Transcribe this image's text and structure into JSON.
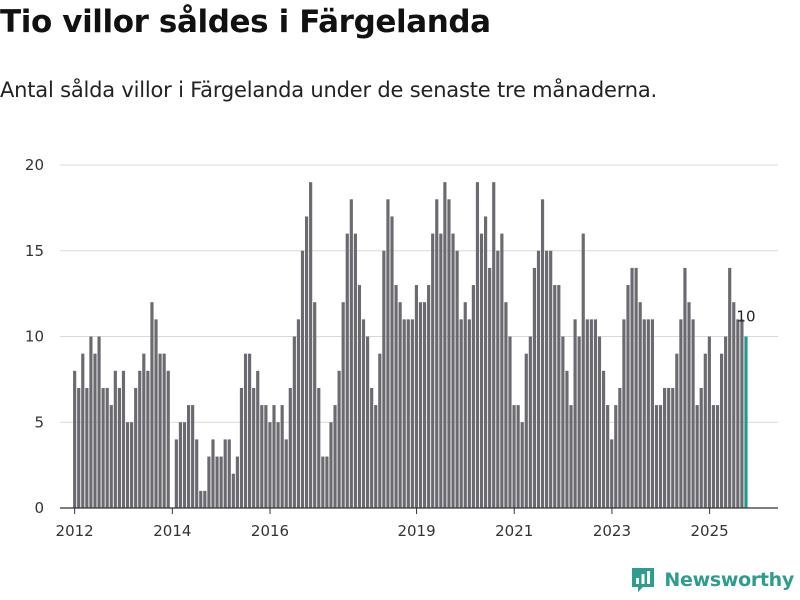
{
  "title": "Tio villor såldes i Färgelanda",
  "subtitle": "Antal sålda villor i Färgelanda under de senaste tre månaderna.",
  "brand": "Newsworthy",
  "colors": {
    "bar": "#6b6a70",
    "highlight": "#1f9a8c",
    "grid": "#d9d9d9",
    "axis": "#333333",
    "brand": "#2e9c8e"
  },
  "chart_data": {
    "type": "bar",
    "title": "Tio villor såldes i Färgelanda",
    "subtitle": "Antal sålda villor i Färgelanda under de senaste tre månaderna.",
    "xlabel": "",
    "ylabel": "",
    "ylim": [
      0,
      20
    ],
    "yticks": [
      0,
      5,
      10,
      15,
      20
    ],
    "xlim": [
      2011.7,
      2026.4
    ],
    "xticks": [
      2012,
      2014,
      2016,
      2019,
      2021,
      2023,
      2025
    ],
    "x_start": 2012.0,
    "x_step": 0.0833,
    "grid": true,
    "highlight_last": true,
    "last_value_label": "10",
    "values": [
      8,
      7,
      9,
      7,
      10,
      9,
      10,
      7,
      7,
      6,
      8,
      7,
      8,
      5,
      5,
      7,
      8,
      9,
      8,
      12,
      11,
      9,
      9,
      8,
      0,
      4,
      5,
      5,
      6,
      6,
      4,
      1,
      1,
      3,
      4,
      3,
      3,
      4,
      4,
      2,
      3,
      7,
      9,
      9,
      7,
      8,
      6,
      6,
      5,
      6,
      5,
      6,
      4,
      7,
      10,
      11,
      15,
      17,
      19,
      12,
      7,
      3,
      3,
      5,
      6,
      8,
      12,
      16,
      18,
      16,
      13,
      11,
      10,
      7,
      6,
      9,
      15,
      18,
      17,
      13,
      12,
      11,
      11,
      11,
      13,
      12,
      12,
      13,
      16,
      18,
      16,
      19,
      18,
      16,
      15,
      11,
      12,
      11,
      13,
      19,
      16,
      17,
      14,
      19,
      15,
      16,
      12,
      10,
      6,
      6,
      5,
      9,
      10,
      14,
      15,
      18,
      15,
      15,
      13,
      13,
      10,
      8,
      6,
      11,
      10,
      16,
      11,
      11,
      11,
      10,
      8,
      6,
      4,
      6,
      7,
      11,
      13,
      14,
      14,
      12,
      11,
      11,
      11,
      6,
      6,
      7,
      7,
      7,
      9,
      11,
      14,
      12,
      11,
      6,
      7,
      9,
      10,
      6,
      6,
      9,
      10,
      14,
      12,
      11,
      11,
      10
    ]
  }
}
